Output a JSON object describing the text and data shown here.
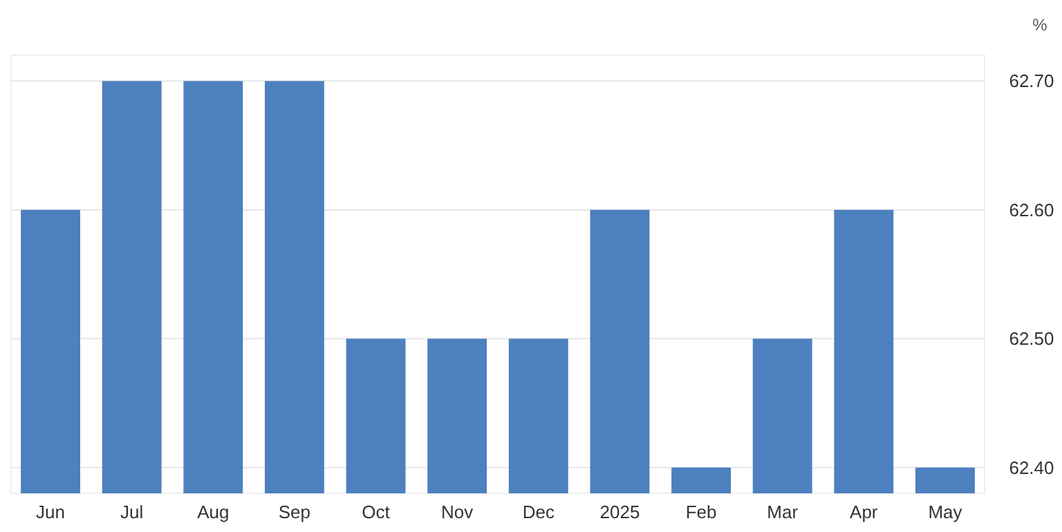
{
  "chart_data": {
    "type": "bar",
    "ylabel": "%",
    "categories": [
      "Jun",
      "Jul",
      "Aug",
      "Sep",
      "Oct",
      "Nov",
      "Dec",
      "2025",
      "Feb",
      "Mar",
      "Apr",
      "May"
    ],
    "values": [
      62.6,
      62.7,
      62.7,
      62.7,
      62.5,
      62.5,
      62.5,
      62.6,
      62.4,
      62.5,
      62.6,
      62.4
    ],
    "color": "#4d80bf",
    "ylim": [
      62.38,
      62.72
    ],
    "yticks": [
      {
        "value": 62.4,
        "label": "62.40"
      },
      {
        "value": 62.5,
        "label": "62.50"
      },
      {
        "value": 62.6,
        "label": "62.60"
      },
      {
        "value": 62.7,
        "label": "62.70"
      }
    ],
    "grid": "y"
  }
}
